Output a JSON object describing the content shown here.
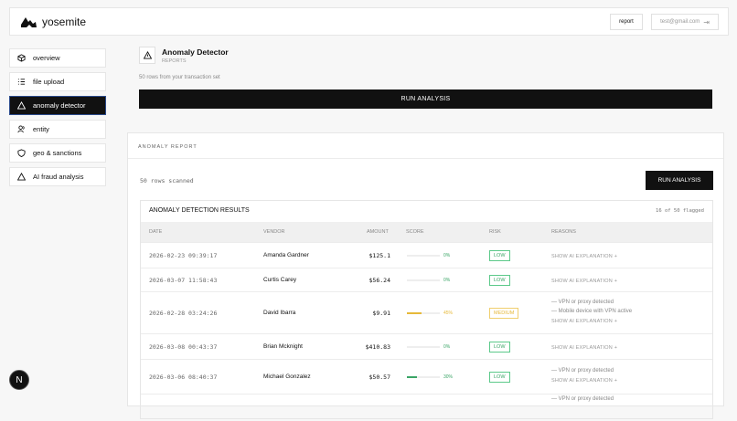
{
  "app": {
    "name": "yosemite",
    "report_label": "report",
    "user_email": "test@gmail.com"
  },
  "sidebar": {
    "items": [
      {
        "label": "overview",
        "icon": "cube-icon",
        "active": false
      },
      {
        "label": "file upload",
        "icon": "list-icon",
        "active": false
      },
      {
        "label": "anomaly detector",
        "icon": "warning-icon",
        "active": true
      },
      {
        "label": "entity",
        "icon": "users-icon",
        "active": false
      },
      {
        "label": "geo & sanctions",
        "icon": "shield-icon",
        "active": false
      },
      {
        "label": "AI fraud analysis",
        "icon": "warning-icon",
        "active": false
      }
    ]
  },
  "page": {
    "title": "Anomaly Detector",
    "subtitle": "REPORTS",
    "description": "50 rows from your transaction set",
    "run_label": "RUN ANALYSIS"
  },
  "report": {
    "heading": "ANOMALY REPORT",
    "scanned": "50 rows scanned",
    "run_label": "RUN ANALYSIS",
    "results_title": "ANOMALY DETECTION RESULTS",
    "flagged": "16 of 50 flagged",
    "columns": [
      "DATE",
      "VENDOR",
      "AMOUNT",
      "SCORE",
      "RISK",
      "REASONS"
    ],
    "explain_label": "SHOW AI EXPLANATION +",
    "rows": [
      {
        "date": "2026-02-23 09:39:17",
        "vendor": "Amanda Gardner",
        "amount": "$125.1",
        "score": 0,
        "score_label": "0%",
        "risk": "LOW",
        "reasons": []
      },
      {
        "date": "2026-03-07 11:58:43",
        "vendor": "Curtis Carey",
        "amount": "$56.24",
        "score": 0,
        "score_label": "0%",
        "risk": "LOW",
        "reasons": []
      },
      {
        "date": "2026-02-28 03:24:26",
        "vendor": "David Ibarra",
        "amount": "$9.91",
        "score": 45,
        "score_label": "45%",
        "risk": "MEDIUM",
        "reasons": [
          "— VPN or proxy detected",
          "— Mobile device with VPN active"
        ]
      },
      {
        "date": "2026-03-08 00:43:37",
        "vendor": "Brian Mcknight",
        "amount": "$410.83",
        "score": 0,
        "score_label": "0%",
        "risk": "LOW",
        "reasons": []
      },
      {
        "date": "2026-03-06 08:40:37",
        "vendor": "Michael Gonzalez",
        "amount": "$50.57",
        "score": 30,
        "score_label": "30%",
        "risk": "LOW",
        "reasons": [
          "— VPN or proxy detected"
        ]
      }
    ],
    "partial_row_reason": "— VPN or proxy detected"
  },
  "colors": {
    "low": "#3aa566",
    "medium": "#e6b93a",
    "primary": "#111111"
  }
}
